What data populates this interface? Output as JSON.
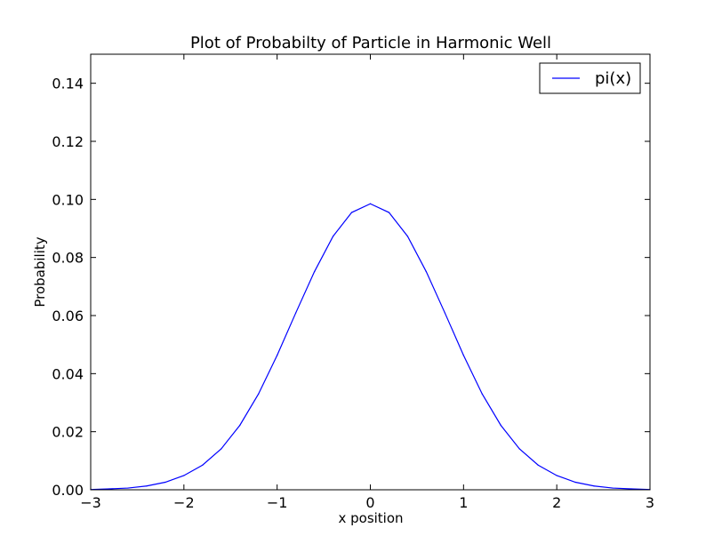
{
  "chart_data": {
    "type": "line",
    "title": "Plot of Probabilty of Particle in Harmonic Well",
    "xlabel": "x position",
    "ylabel": "Probability",
    "xlim": [
      -3,
      3
    ],
    "ylim": [
      0,
      0.15
    ],
    "grid": false,
    "legend_position": "top-right",
    "x_ticks": [
      "−3",
      "−2",
      "−1",
      "0",
      "1",
      "2",
      "3"
    ],
    "y_ticks": [
      "0.00",
      "0.02",
      "0.04",
      "0.06",
      "0.08",
      "0.10",
      "0.12",
      "0.14"
    ],
    "x_tick_values": [
      -3,
      -2,
      -1,
      0,
      1,
      2,
      3
    ],
    "y_tick_values": [
      0,
      0.02,
      0.04,
      0.06,
      0.08,
      0.1,
      0.12,
      0.14
    ],
    "series": [
      {
        "name": "pi(x)",
        "color": "#0000ff",
        "x": [
          -3.0,
          -2.8,
          -2.6,
          -2.4,
          -2.2,
          -2.0,
          -1.8,
          -1.6,
          -1.4,
          -1.2,
          -1.0,
          -0.8,
          -0.6,
          -0.4,
          -0.2,
          0.0,
          0.2,
          0.4,
          0.6,
          0.8,
          1.0,
          1.2,
          1.4,
          1.6,
          1.8,
          2.0,
          2.2,
          2.4,
          2.6,
          2.8,
          3.0
        ],
        "y": [
          0.0001,
          0.0003,
          0.0006,
          0.0013,
          0.0026,
          0.0049,
          0.0085,
          0.0141,
          0.0222,
          0.033,
          0.0463,
          0.0609,
          0.0751,
          0.0873,
          0.0955,
          0.0985,
          0.0955,
          0.0873,
          0.0751,
          0.0609,
          0.0463,
          0.033,
          0.0222,
          0.0141,
          0.0085,
          0.0049,
          0.0026,
          0.0013,
          0.0006,
          0.0003,
          0.0001
        ]
      }
    ]
  }
}
